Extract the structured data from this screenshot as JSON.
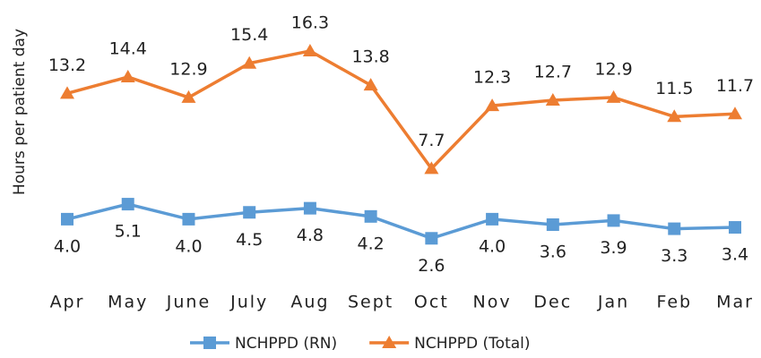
{
  "chart_data": {
    "type": "line",
    "y_label": "Hours per patient day",
    "categories": [
      "Apr",
      "May",
      "June",
      "July",
      "Aug",
      "Sept",
      "Oct",
      "Nov",
      "Dec",
      "Jan",
      "Feb",
      "Mar"
    ],
    "series": [
      {
        "name": "NCHPPD (RN)",
        "color": "#5b9bd5",
        "marker": "square",
        "values": [
          4.0,
          5.1,
          4.0,
          4.5,
          4.8,
          4.2,
          2.6,
          4.0,
          3.6,
          3.9,
          3.3,
          3.4
        ],
        "value_labels": [
          "4.0",
          "5.1",
          "4.0",
          "4.5",
          "4.8",
          "4.2",
          "2.6",
          "4.0",
          "3.6",
          "3.9",
          "3.3",
          "3.4"
        ],
        "label_position": "below"
      },
      {
        "name": "NCHPPD (Total)",
        "color": "#ed7d31",
        "marker": "triangle",
        "values": [
          13.2,
          14.4,
          12.9,
          15.4,
          16.3,
          13.8,
          7.7,
          12.3,
          12.7,
          12.9,
          11.5,
          11.7
        ],
        "value_labels": [
          "13.2",
          "14.4",
          "12.9",
          "15.4",
          "16.3",
          "13.8",
          "7.7",
          "12.3",
          "12.7",
          "12.9",
          "11.5",
          "11.7"
        ],
        "label_position": "above"
      }
    ],
    "ylim": [
      0,
      18
    ],
    "legend": "bottom"
  }
}
